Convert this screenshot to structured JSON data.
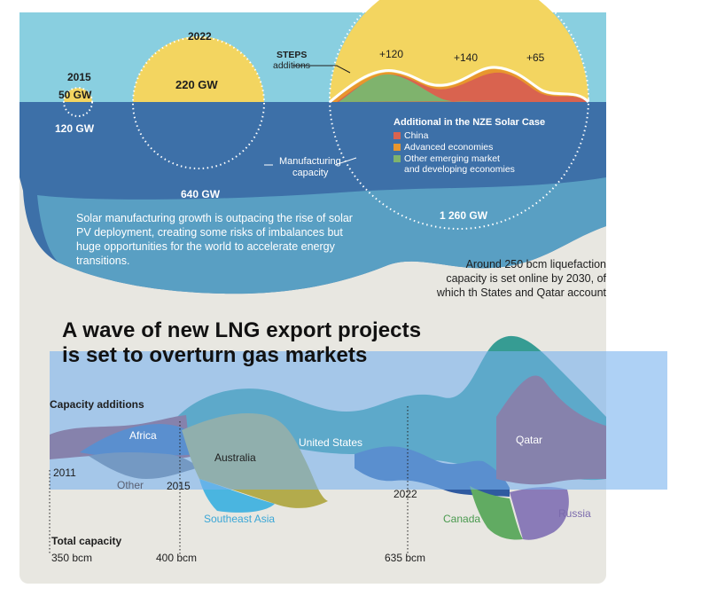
{
  "solar": {
    "years": {
      "y2015": "2015",
      "y2022": "2022"
    },
    "deployment": {
      "v2015": "50 GW",
      "v2022": "220 GW"
    },
    "manufacturing": {
      "v2015": "120 GW",
      "v2022": "640 GW",
      "v2030": "1 260 GW"
    },
    "steps_label": {
      "line1": "STEPS",
      "line2": "additions"
    },
    "manufacturing_label": {
      "line1": "Manufacturing",
      "line2": "capacity"
    },
    "additions": {
      "a": "+120",
      "b": "+140",
      "c": "+65"
    },
    "legend": {
      "title": "Additional in the NZE Solar Case",
      "items": [
        {
          "label": "China",
          "color": "#d9634f"
        },
        {
          "label": "Advanced economies",
          "color": "#e8962e"
        },
        {
          "label": "Other emerging market",
          "label2": "and developing economies",
          "color": "#7fb36d"
        }
      ]
    },
    "paragraph": "Solar manufacturing growth is outpacing the rise of solar PV deployment, creating some risks of imbalances but huge opportunities for the world to accelerate energy transitions."
  },
  "lng": {
    "side_text": "Around 250 bcm liquefaction capacity is set online by 2030, of which th States and Qatar account",
    "headline": {
      "line1": "A wave of new LNG export projects",
      "line2": "is set to overturn gas markets"
    },
    "capacity_additions": "Capacity additions",
    "total_capacity": "Total capacity",
    "years": {
      "y2011": "2011",
      "y2015": "2015",
      "y2022": "2022"
    },
    "totals": {
      "t2011": "350 bcm",
      "t2015": "400 bcm",
      "t2022": "635 bcm"
    },
    "regions": {
      "africa": "Africa",
      "other": "Other",
      "australia": "Australia",
      "us": "United States",
      "sea": "Southeast Asia",
      "canada": "Canada",
      "qatar": "Qatar",
      "russia": "Russia"
    }
  },
  "colors": {
    "sky": "#89cfe0",
    "ocean": "#3d70a8",
    "ocean_light": "#5ea7c8",
    "sun": "#f3d560",
    "sand": "#e8e7e1",
    "teal": "#369c93",
    "olive": "#a9a64a",
    "navy": "#2f5aa0",
    "maroon": "#9c3a49",
    "slate": "#6e7383",
    "green": "#61ab62",
    "purple": "#8a7bb8",
    "lightblue": "#4ab5e0",
    "overlay": "rgba(120,178,238,0.6)"
  }
}
